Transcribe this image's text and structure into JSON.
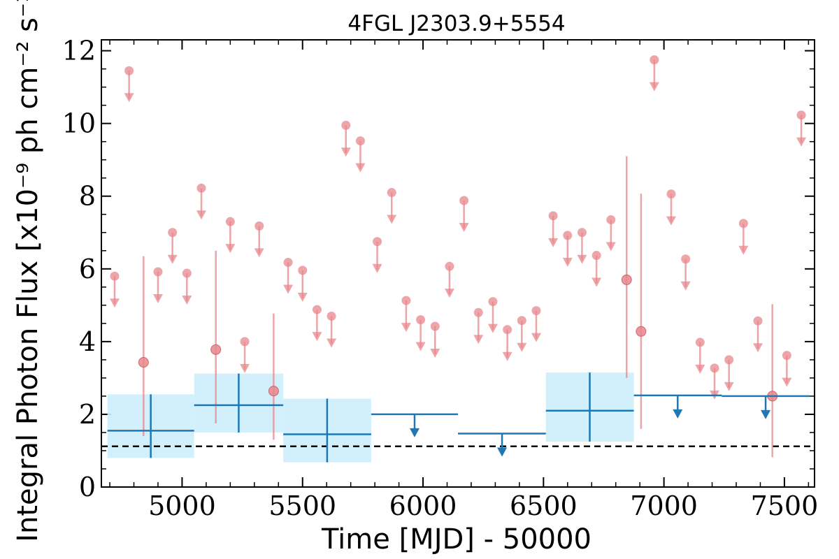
{
  "chart_data": {
    "type": "scatter",
    "title": "4FGL J2303.9+5554",
    "xlabel": "Time [MJD] - 50000",
    "ylabel": "Integral Photon Flux [x10⁻⁹ ph cm⁻² s⁻¹]",
    "xlim": [
      4665,
      7625
    ],
    "ylim": [
      0,
      12.3
    ],
    "x_ticks": [
      5000,
      5500,
      6000,
      6500,
      7000,
      7500
    ],
    "y_ticks": [
      0,
      2,
      4,
      6,
      8,
      10,
      12
    ],
    "grid": false,
    "colors": {
      "short_bins": "#e8878c",
      "long_bins": "#1f77b4",
      "long_bins_fill": "#cceefc",
      "reference_line": "#000000"
    },
    "reference_line": {
      "y": 1.12,
      "style": "dashed"
    },
    "short_bins_upper_limits": [
      {
        "x": 4720,
        "y": 5.8
      },
      {
        "x": 4780,
        "y": 11.45
      },
      {
        "x": 4900,
        "y": 5.92
      },
      {
        "x": 4960,
        "y": 7.0
      },
      {
        "x": 5020,
        "y": 5.88
      },
      {
        "x": 5080,
        "y": 8.22
      },
      {
        "x": 5200,
        "y": 7.3
      },
      {
        "x": 5260,
        "y": 4.0
      },
      {
        "x": 5320,
        "y": 7.18
      },
      {
        "x": 5440,
        "y": 6.18
      },
      {
        "x": 5500,
        "y": 5.96
      },
      {
        "x": 5560,
        "y": 4.88
      },
      {
        "x": 5620,
        "y": 4.7
      },
      {
        "x": 5680,
        "y": 9.95
      },
      {
        "x": 5740,
        "y": 9.52
      },
      {
        "x": 5810,
        "y": 6.75
      },
      {
        "x": 5870,
        "y": 8.1
      },
      {
        "x": 5930,
        "y": 5.13
      },
      {
        "x": 5990,
        "y": 4.6
      },
      {
        "x": 6050,
        "y": 4.42
      },
      {
        "x": 6110,
        "y": 6.07
      },
      {
        "x": 6170,
        "y": 7.88
      },
      {
        "x": 6230,
        "y": 4.8
      },
      {
        "x": 6290,
        "y": 5.1
      },
      {
        "x": 6350,
        "y": 4.33
      },
      {
        "x": 6410,
        "y": 4.58
      },
      {
        "x": 6470,
        "y": 4.85
      },
      {
        "x": 6540,
        "y": 7.46
      },
      {
        "x": 6600,
        "y": 6.92
      },
      {
        "x": 6660,
        "y": 7.0
      },
      {
        "x": 6720,
        "y": 6.37
      },
      {
        "x": 6780,
        "y": 7.35
      },
      {
        "x": 6960,
        "y": 11.75
      },
      {
        "x": 7030,
        "y": 8.06
      },
      {
        "x": 7090,
        "y": 6.27
      },
      {
        "x": 7150,
        "y": 3.98
      },
      {
        "x": 7210,
        "y": 3.27
      },
      {
        "x": 7270,
        "y": 3.5
      },
      {
        "x": 7330,
        "y": 7.25
      },
      {
        "x": 7390,
        "y": 4.57
      },
      {
        "x": 7510,
        "y": 3.62
      },
      {
        "x": 7570,
        "y": 10.23
      }
    ],
    "short_bins_detections": [
      {
        "x": 4840,
        "y": 3.43,
        "y_low": 1.4,
        "y_high": 6.35
      },
      {
        "x": 5140,
        "y": 3.78,
        "y_low": 1.75,
        "y_high": 6.5
      },
      {
        "x": 5380,
        "y": 2.64,
        "y_low": 1.3,
        "y_high": 4.77
      },
      {
        "x": 6845,
        "y": 5.7,
        "y_low": 3.0,
        "y_high": 9.1
      },
      {
        "x": 6905,
        "y": 4.28,
        "y_low": 1.6,
        "y_high": 8.07
      },
      {
        "x": 7450,
        "y": 2.5,
        "y_low": 0.82,
        "y_high": 5.03
      }
    ],
    "long_bins_detections": [
      {
        "x_start": 4690,
        "x_end": 5050,
        "x": 4870,
        "y": 1.55,
        "y_low": 0.8,
        "y_high": 2.55
      },
      {
        "x_start": 5050,
        "x_end": 5420,
        "x": 5235,
        "y": 2.25,
        "y_low": 1.5,
        "y_high": 3.12
      },
      {
        "x_start": 5420,
        "x_end": 5785,
        "x": 5602,
        "y": 1.45,
        "y_low": 0.68,
        "y_high": 2.43
      },
      {
        "x_start": 6510,
        "x_end": 6875,
        "x": 6692,
        "y": 2.1,
        "y_low": 1.25,
        "y_high": 3.15
      }
    ],
    "long_bins_upper_limits": [
      {
        "x_start": 5785,
        "x_end": 6145,
        "x": 5965,
        "y": 2.0
      },
      {
        "x_start": 6145,
        "x_end": 6510,
        "x": 6328,
        "y": 1.47
      },
      {
        "x_start": 6875,
        "x_end": 7240,
        "x": 7057,
        "y": 2.52
      },
      {
        "x_start": 7240,
        "x_end": 7605,
        "x": 7422,
        "y": 2.5
      }
    ]
  }
}
